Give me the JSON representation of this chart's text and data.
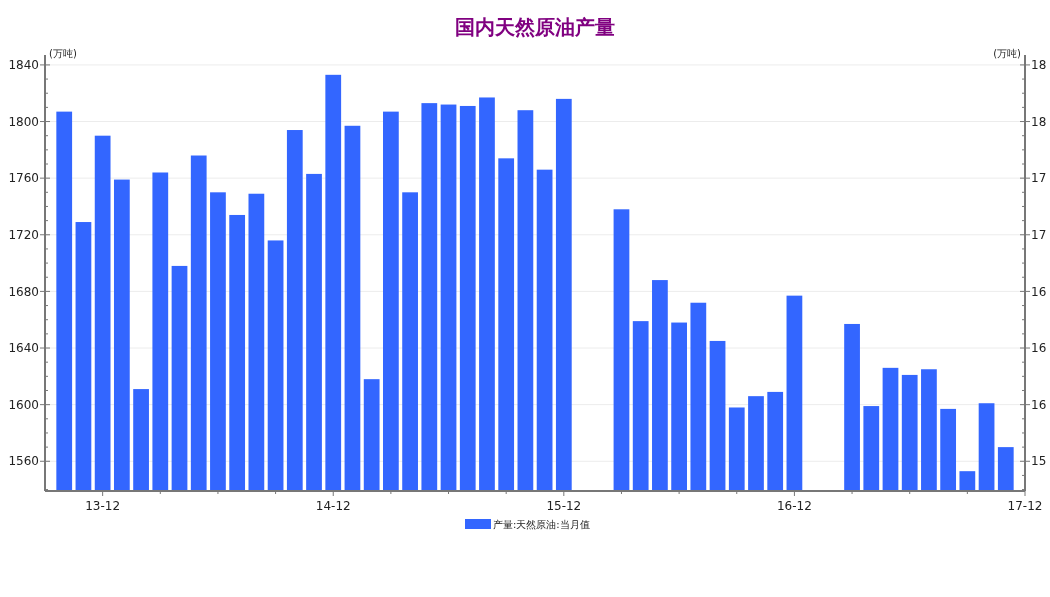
{
  "chart_data": {
    "type": "bar",
    "title": "国内天然原油产量",
    "ylabel": "(万吨)",
    "y2label": "(万吨)",
    "categories": [
      null,
      null,
      "13-12",
      null,
      null,
      null,
      null,
      null,
      null,
      null,
      null,
      null,
      null,
      null,
      "14-12",
      null,
      null,
      null,
      null,
      null,
      null,
      null,
      null,
      null,
      null,
      null,
      "15-12",
      null,
      null,
      null,
      null,
      null,
      null,
      null,
      null,
      null,
      null,
      null,
      "16-12",
      null,
      null,
      null,
      null,
      null,
      null,
      null,
      null,
      null,
      null,
      null,
      "17-12"
    ],
    "series": [
      {
        "name": "产量:天然原油:当月值",
        "color": "#3366ff",
        "values": [
          1807,
          1729,
          1790,
          1759,
          1611,
          1764,
          1698,
          1776,
          1750,
          1734,
          1749,
          1716,
          1794,
          1763,
          1833,
          1797,
          1618,
          1807,
          1750,
          1813,
          1812,
          1811,
          1817,
          1774,
          1808,
          1766,
          1816,
          null,
          null,
          1738,
          1659,
          1688,
          1658,
          1672,
          1645,
          1598,
          1606,
          1609,
          1677,
          null,
          null,
          1657,
          1599,
          1626,
          1621,
          1625,
          1597,
          1553,
          1601,
          1570,
          null
        ]
      }
    ],
    "ylim": [
      1539,
      1847
    ],
    "yticks": [
      {
        "value": 1540,
        "label": null
      },
      1560,
      {
        "value": 1570,
        "label": null
      },
      {
        "value": 1580,
        "label": null
      },
      {
        "value": 1590,
        "label": null
      },
      1600,
      {
        "value": 1610,
        "label": null
      },
      {
        "value": 1620,
        "label": null
      },
      {
        "value": 1630,
        "label": null
      },
      1640,
      {
        "value": 1650,
        "label": null
      },
      {
        "value": 1660,
        "label": null
      },
      {
        "value": 1670,
        "label": null
      },
      1680,
      {
        "value": 1690,
        "label": null
      },
      {
        "value": 1700,
        "label": null
      },
      {
        "value": 1710,
        "label": null
      },
      1720,
      {
        "value": 1730,
        "label": null
      },
      {
        "value": 1740,
        "label": null
      },
      {
        "value": 1750,
        "label": null
      },
      1760,
      {
        "value": 1770,
        "label": null
      },
      {
        "value": 1780,
        "label": null
      },
      {
        "value": 1790,
        "label": null
      },
      1800,
      {
        "value": 1810,
        "label": null
      },
      {
        "value": 1820,
        "label": null
      },
      {
        "value": 1830,
        "label": null
      },
      1840
    ],
    "y2lim": [
      14.99,
      18.07
    ],
    "y2ticks": [
      {
        "value": 15.2,
        "label": "15"
      },
      {
        "value": 15.6,
        "label": "16"
      },
      {
        "value": 16.0,
        "label": "16"
      },
      {
        "value": 16.4,
        "label": "16"
      },
      {
        "value": 16.8,
        "label": "17"
      },
      {
        "value": 17.2,
        "label": "17"
      },
      {
        "value": 17.6,
        "label": "18"
      },
      {
        "value": 18.0,
        "label": "18"
      },
      {
        "value": 15.0,
        "label": null
      },
      {
        "value": 15.1,
        "label": null
      },
      {
        "value": 15.3,
        "label": null
      },
      {
        "value": 15.4,
        "label": null
      },
      {
        "value": 15.5,
        "label": null
      },
      {
        "value": 15.7,
        "label": null
      },
      {
        "value": 15.8,
        "label": null
      },
      {
        "value": 15.9,
        "label": null
      },
      {
        "value": 16.1,
        "label": null
      },
      {
        "value": 16.2,
        "label": null
      },
      {
        "value": 16.3,
        "label": null
      },
      {
        "value": 16.5,
        "label": null
      },
      {
        "value": 16.6,
        "label": null
      },
      {
        "value": 16.7,
        "label": null
      },
      {
        "value": 16.9,
        "label": null
      },
      {
        "value": 17.0,
        "label": null
      },
      {
        "value": 17.1,
        "label": null
      },
      {
        "value": 17.3,
        "label": null
      },
      {
        "value": 17.4,
        "label": null
      },
      {
        "value": 17.5,
        "label": null
      },
      {
        "value": 17.7,
        "label": null
      },
      {
        "value": 17.8,
        "label": null
      },
      {
        "value": 17.9,
        "label": null
      }
    ],
    "grid": "y",
    "legend": "bottom"
  }
}
